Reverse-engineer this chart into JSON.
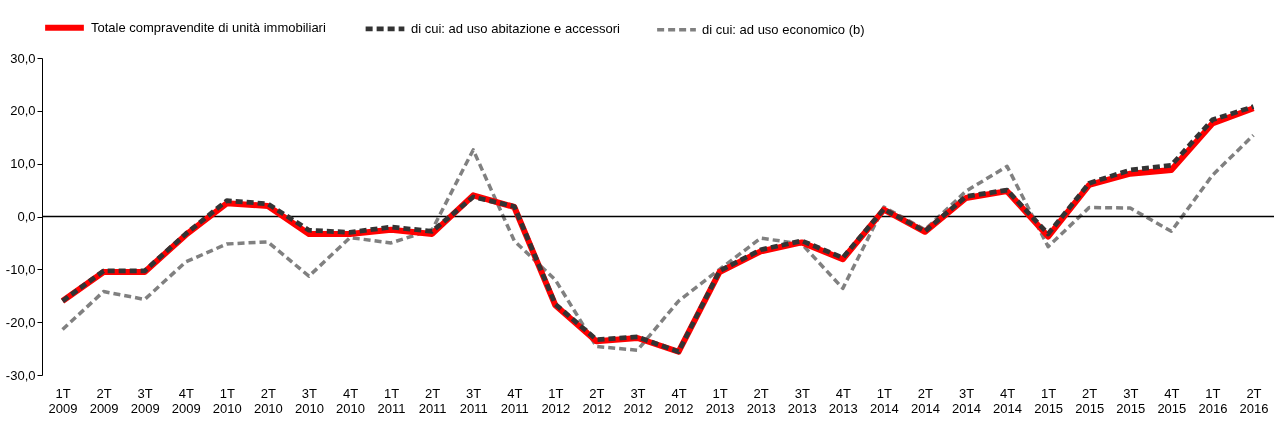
{
  "chart_data": {
    "type": "line",
    "categories": [
      "1T 2009",
      "2T 2009",
      "3T 2009",
      "4T 2009",
      "1T 2010",
      "2T 2010",
      "3T 2010",
      "4T 2010",
      "1T 2011",
      "2T 2011",
      "3T 2011",
      "4T 2011",
      "1T 2012",
      "2T 2012",
      "3T 2012",
      "4T 2012",
      "1T 2013",
      "2T 2013",
      "3T 2013",
      "4T 2013",
      "1T 2014",
      "2T 2014",
      "3T 2014",
      "4T 2014",
      "1T 2015",
      "2T 2015",
      "3T 2015",
      "4T 2015",
      "1T 2016",
      "2T 2016"
    ],
    "series": [
      {
        "name": "Totale compravendite di unità immobiliari",
        "color": "#ff0000",
        "line_style": "solid",
        "values": [
          -16.0,
          -10.5,
          -10.5,
          -3.5,
          2.5,
          2.0,
          -3.3,
          -3.3,
          -2.5,
          -3.3,
          4.0,
          1.8,
          -16.8,
          -23.6,
          -23.0,
          -25.6,
          -10.5,
          -6.6,
          -4.9,
          -8.1,
          1.3,
          -2.9,
          3.5,
          4.8,
          -3.8,
          6.0,
          8.1,
          8.8,
          17.6,
          20.5
        ]
      },
      {
        "name": "di cui: ad uso abitazione e accessori",
        "color": "#333333",
        "line_style": "dashed",
        "values": [
          -16.0,
          -10.3,
          -10.3,
          -3.3,
          3.0,
          2.4,
          -2.6,
          -3.0,
          -2.0,
          -2.8,
          3.7,
          1.9,
          -16.6,
          -23.3,
          -22.8,
          -25.6,
          -10.3,
          -6.3,
          -4.6,
          -7.8,
          1.4,
          -2.8,
          3.8,
          5.0,
          -3.3,
          6.3,
          8.8,
          9.7,
          18.3,
          20.8
        ]
      },
      {
        "name": "di cui: ad uso economico (b)",
        "color": "#808080",
        "line_style": "dashed",
        "values": [
          -21.4,
          -14.2,
          -15.7,
          -8.6,
          -5.2,
          -4.8,
          -11.3,
          -4.0,
          -5.0,
          -2.5,
          12.6,
          -4.6,
          -12.0,
          -24.6,
          -25.3,
          -16.0,
          -10.0,
          -4.1,
          -5.2,
          -13.6,
          1.8,
          -2.5,
          4.8,
          9.5,
          -5.7,
          1.7,
          1.6,
          -2.8,
          7.8,
          15.4
        ]
      }
    ],
    "ylim": [
      -30,
      30
    ],
    "yticks": [
      {
        "value": -30,
        "label": "-30,0"
      },
      {
        "value": -20,
        "label": "-20,0"
      },
      {
        "value": -10,
        "label": "-10,0"
      },
      {
        "value": 0,
        "label": "0,0"
      },
      {
        "value": 10,
        "label": "10,0"
      },
      {
        "value": 20,
        "label": "20,0"
      },
      {
        "value": 30,
        "label": "30,0"
      }
    ],
    "ref_lines": [
      {
        "axis": "y",
        "value": 0,
        "color": "#000000"
      }
    ],
    "grid": false,
    "legend": "top",
    "marker": "none"
  }
}
